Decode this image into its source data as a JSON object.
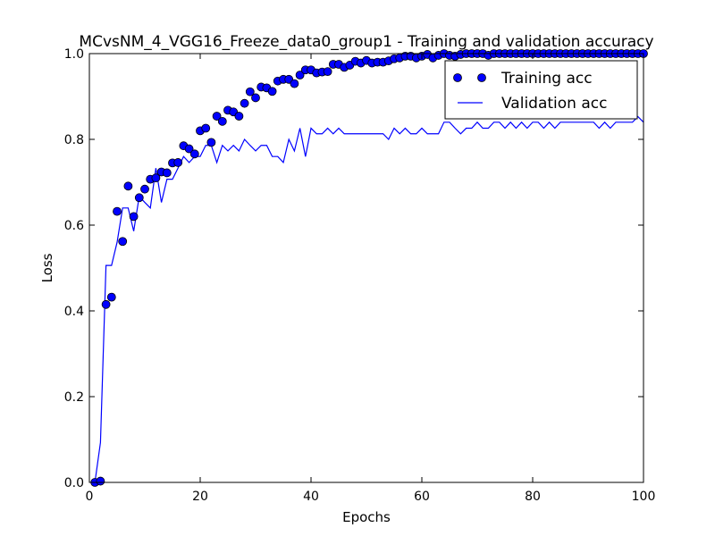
{
  "chart_data": {
    "type": "line",
    "title": "MCvsNM_4_VGG16_Freeze_data0_group1 - Training and validation accuracy",
    "xlabel": "Epochs",
    "ylabel": "Loss",
    "xlim": [
      0,
      100
    ],
    "ylim": [
      0.0,
      1.0
    ],
    "x_ticks": [
      "0",
      "20",
      "40",
      "60",
      "80",
      "100"
    ],
    "y_ticks": [
      "0.0",
      "0.2",
      "0.4",
      "0.6",
      "0.8",
      "1.0"
    ],
    "grid": false,
    "legend_position": "top-right",
    "colors": {
      "series": "#0000ff",
      "axes": "#000000",
      "background": "#ffffff"
    },
    "series": [
      {
        "name": "Training acc",
        "style": "markers",
        "x": [
          1,
          2,
          3,
          4,
          5,
          6,
          7,
          8,
          9,
          10,
          11,
          12,
          13,
          14,
          15,
          16,
          17,
          18,
          19,
          20,
          21,
          22,
          23,
          24,
          25,
          26,
          27,
          28,
          29,
          30,
          31,
          32,
          33,
          34,
          35,
          36,
          37,
          38,
          39,
          40,
          41,
          42,
          43,
          44,
          45,
          46,
          47,
          48,
          49,
          50,
          51,
          52,
          53,
          54,
          55,
          56,
          57,
          58,
          59,
          60,
          61,
          62,
          63,
          64,
          65,
          66,
          67,
          68,
          69,
          70,
          71,
          72,
          73,
          74,
          75,
          76,
          77,
          78,
          79,
          80,
          81,
          82,
          83,
          84,
          85,
          86,
          87,
          88,
          89,
          90,
          91,
          92,
          93,
          94,
          95,
          96,
          97,
          98,
          99,
          100
        ],
        "values": [
          0.0,
          0.003,
          0.415,
          0.432,
          0.632,
          0.562,
          0.691,
          0.62,
          0.664,
          0.684,
          0.707,
          0.71,
          0.724,
          0.722,
          0.745,
          0.746,
          0.785,
          0.778,
          0.766,
          0.82,
          0.826,
          0.793,
          0.854,
          0.842,
          0.868,
          0.864,
          0.854,
          0.884,
          0.911,
          0.897,
          0.922,
          0.92,
          0.912,
          0.936,
          0.94,
          0.94,
          0.93,
          0.95,
          0.962,
          0.962,
          0.955,
          0.957,
          0.958,
          0.975,
          0.975,
          0.968,
          0.973,
          0.982,
          0.978,
          0.984,
          0.978,
          0.98,
          0.98,
          0.983,
          0.988,
          0.99,
          0.994,
          0.994,
          0.99,
          0.994,
          0.998,
          0.99,
          0.996,
          1.0,
          0.996,
          0.994,
          0.998,
          1.0,
          1.0,
          1.0,
          1.0,
          0.996,
          1.0,
          1.0,
          1.0,
          1.0,
          1.0,
          1.0,
          1.0,
          1.0,
          1.0,
          1.0,
          1.0,
          1.0,
          1.0,
          1.0,
          1.0,
          1.0,
          1.0,
          1.0,
          1.0,
          1.0,
          1.0,
          1.0,
          1.0,
          1.0,
          1.0,
          1.0,
          1.0,
          1.0
        ]
      },
      {
        "name": "Validation acc",
        "style": "line",
        "x": [
          1,
          2,
          3,
          4,
          5,
          6,
          7,
          8,
          9,
          10,
          11,
          12,
          13,
          14,
          15,
          16,
          17,
          18,
          19,
          20,
          21,
          22,
          23,
          24,
          25,
          26,
          27,
          28,
          29,
          30,
          31,
          32,
          33,
          34,
          35,
          36,
          37,
          38,
          39,
          40,
          41,
          42,
          43,
          44,
          45,
          46,
          47,
          48,
          49,
          50,
          51,
          52,
          53,
          54,
          55,
          56,
          57,
          58,
          59,
          60,
          61,
          62,
          63,
          64,
          65,
          66,
          67,
          68,
          69,
          70,
          71,
          72,
          73,
          74,
          75,
          76,
          77,
          78,
          79,
          80,
          81,
          82,
          83,
          84,
          85,
          86,
          87,
          88,
          89,
          90,
          91,
          92,
          93,
          94,
          95,
          96,
          97,
          98,
          99,
          100
        ],
        "values": [
          0.0,
          0.093,
          0.506,
          0.506,
          0.56,
          0.64,
          0.64,
          0.586,
          0.667,
          0.653,
          0.64,
          0.733,
          0.653,
          0.707,
          0.707,
          0.733,
          0.76,
          0.746,
          0.76,
          0.76,
          0.786,
          0.786,
          0.746,
          0.786,
          0.773,
          0.786,
          0.773,
          0.8,
          0.786,
          0.773,
          0.786,
          0.786,
          0.76,
          0.76,
          0.746,
          0.8,
          0.773,
          0.826,
          0.76,
          0.826,
          0.813,
          0.813,
          0.826,
          0.813,
          0.826,
          0.813,
          0.813,
          0.813,
          0.813,
          0.813,
          0.813,
          0.813,
          0.813,
          0.8,
          0.826,
          0.813,
          0.826,
          0.813,
          0.813,
          0.826,
          0.813,
          0.813,
          0.813,
          0.84,
          0.84,
          0.826,
          0.813,
          0.826,
          0.826,
          0.84,
          0.826,
          0.826,
          0.84,
          0.84,
          0.826,
          0.84,
          0.826,
          0.84,
          0.826,
          0.84,
          0.84,
          0.826,
          0.84,
          0.826,
          0.84,
          0.84,
          0.84,
          0.84,
          0.84,
          0.84,
          0.84,
          0.826,
          0.84,
          0.826,
          0.84,
          0.84,
          0.84,
          0.84,
          0.853,
          0.84
        ]
      }
    ]
  }
}
